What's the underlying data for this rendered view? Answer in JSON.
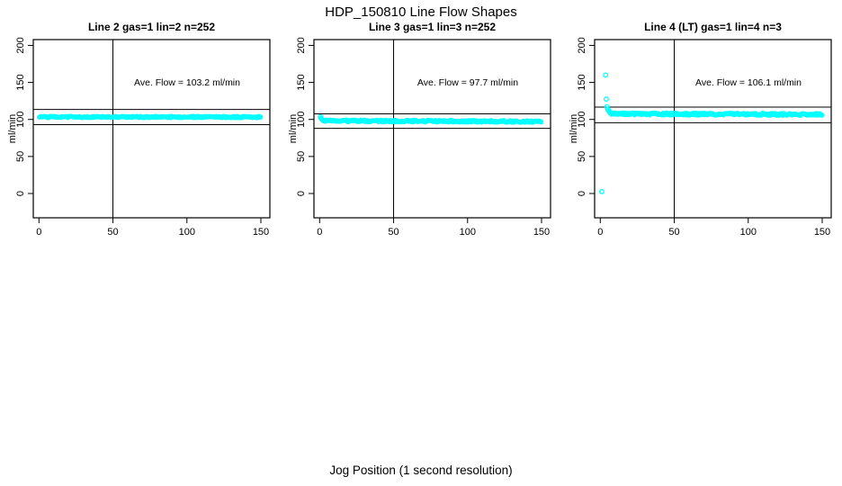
{
  "figure": {
    "title": "HDP_150810  Line Flow Shapes",
    "xlabel": "Jog Position (1 second resolution)",
    "point_color": "#00ffff",
    "axis_color": "#000000",
    "background_color": "#ffffff"
  },
  "chart_data": [
    {
      "type": "scatter",
      "title": "Line 2 gas=1 lin=2 n=252",
      "annotation": "Ave. Flow =  103.2  ml/min",
      "ave_flow_ml_min": 103.2,
      "n": 252,
      "ylabel": "ml/min",
      "xlim": [
        0,
        150
      ],
      "ylim": [
        0,
        200
      ],
      "x_ticks": [
        0,
        50,
        100,
        150
      ],
      "y_ticks": [
        0,
        50,
        100,
        150,
        200
      ],
      "vline_x": 50,
      "hlines_y": [
        92.9,
        113.5
      ],
      "series": {
        "name": "flow-points",
        "band": {
          "x_start": 0.3,
          "x_end": 150,
          "x_step": 0.6,
          "y_start": 103.4,
          "y_end": 103.2,
          "jitter": 1.0
        },
        "outliers": []
      },
      "legend": false,
      "grid": false
    },
    {
      "type": "scatter",
      "title": "Line 3 gas=1 lin=3 n=252",
      "annotation": "Ave. Flow =  97.7  ml/min",
      "ave_flow_ml_min": 97.7,
      "n": 252,
      "ylabel": "ml/min",
      "xlim": [
        0,
        150
      ],
      "ylim": [
        0,
        200
      ],
      "x_ticks": [
        0,
        50,
        100,
        150
      ],
      "y_ticks": [
        0,
        50,
        100,
        150,
        200
      ],
      "vline_x": 50,
      "hlines_y": [
        87.9,
        107.5
      ],
      "series": {
        "name": "flow-points",
        "band": {
          "x_start": 2,
          "x_end": 150,
          "x_step": 0.6,
          "y_start": 98.2,
          "y_end": 97.2,
          "jitter": 1.2
        },
        "outliers": [
          [
            0.5,
            103.5
          ],
          [
            1,
            101.5
          ],
          [
            1.5,
            100.2
          ],
          [
            2,
            99.2
          ],
          [
            2.5,
            98.6
          ]
        ]
      },
      "legend": false,
      "grid": false
    },
    {
      "type": "scatter",
      "title": "Line 4 (LT) gas=1 lin=4 n=3",
      "annotation": "Ave. Flow =  106.1  ml/min",
      "ave_flow_ml_min": 106.1,
      "n": 3,
      "ylabel": "ml/min",
      "xlim": [
        0,
        150
      ],
      "ylim": [
        0,
        200
      ],
      "vline_x": 50,
      "x_ticks": [
        0,
        50,
        100,
        150
      ],
      "y_ticks": [
        0,
        50,
        100,
        150,
        200
      ],
      "hlines_y": [
        95.5,
        116.7
      ],
      "series": {
        "name": "flow-points",
        "band": {
          "x_start": 7,
          "x_end": 150,
          "x_step": 0.6,
          "y_start": 107.6,
          "y_end": 106.8,
          "jitter": 1.4
        },
        "outliers": [
          [
            1,
            2.5
          ],
          [
            3.5,
            160
          ],
          [
            4,
            127.5
          ],
          [
            4.5,
            117
          ],
          [
            5,
            114
          ],
          [
            5.5,
            112
          ],
          [
            6,
            110.5
          ],
          [
            6.5,
            109.8
          ],
          [
            7,
            109.2
          ],
          [
            8,
            108.5
          ],
          [
            9,
            108
          ]
        ]
      },
      "legend": false,
      "grid": false
    }
  ]
}
